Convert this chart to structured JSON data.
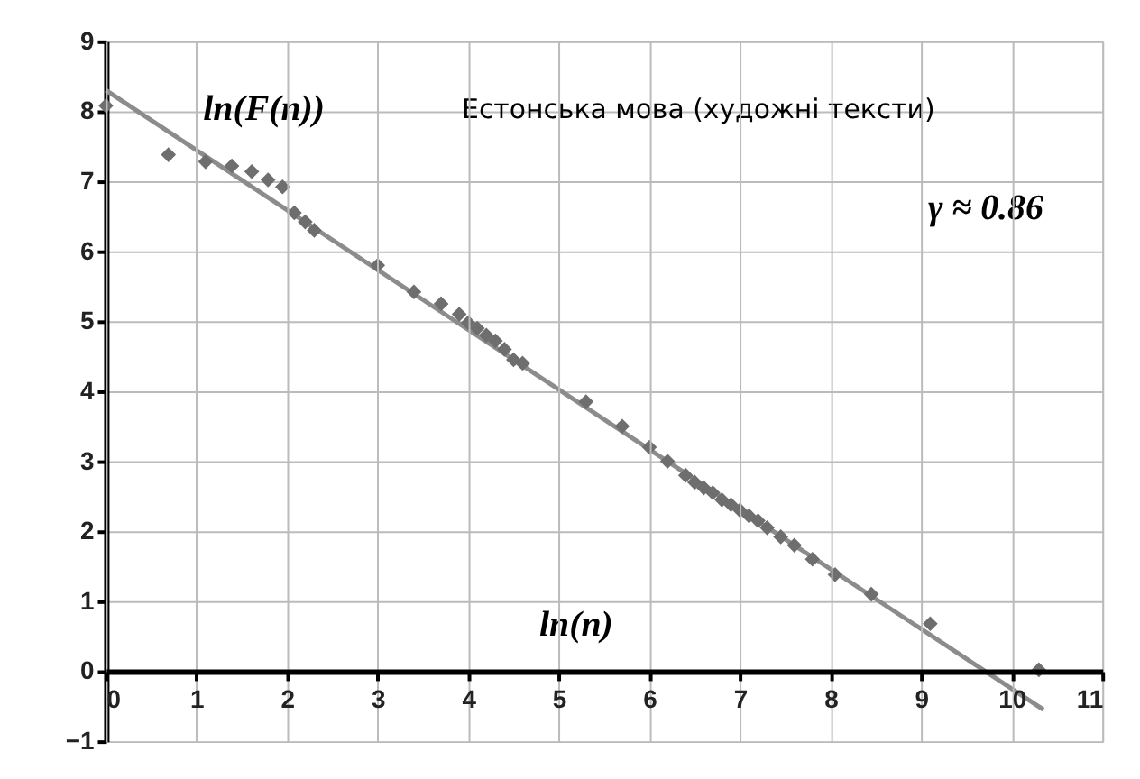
{
  "chart_data": {
    "type": "scatter",
    "title": "Естонська мова (художні тексти)",
    "xlabel": "ln(n)",
    "ylabel": "ln(F(n))",
    "annotations": [
      "γ ≈ 0.86"
    ],
    "xlim": [
      0,
      11
    ],
    "ylim": [
      -1,
      9
    ],
    "xticks": [
      0,
      1,
      2,
      3,
      4,
      5,
      6,
      7,
      8,
      9,
      10,
      11
    ],
    "yticks": [
      -1,
      0,
      1,
      2,
      3,
      4,
      5,
      6,
      7,
      8,
      9
    ],
    "grid": true,
    "series": [
      {
        "type": "scatter",
        "marker": "diamond",
        "color": "#6e6e6e",
        "x": [
          0,
          0.69,
          1.1,
          1.39,
          1.61,
          1.79,
          1.95,
          2.08,
          2.2,
          2.3,
          3.0,
          3.4,
          3.7,
          3.9,
          4.0,
          4.1,
          4.2,
          4.3,
          4.4,
          4.5,
          4.6,
          5.3,
          5.7,
          6.0,
          6.2,
          6.4,
          6.5,
          6.6,
          6.7,
          6.8,
          6.9,
          7.0,
          7.1,
          7.2,
          7.3,
          7.45,
          7.6,
          7.8,
          8.05,
          8.45,
          9.1,
          10.3
        ],
        "values": [
          8.08,
          7.38,
          7.28,
          7.22,
          7.14,
          7.02,
          6.92,
          6.55,
          6.42,
          6.3,
          5.8,
          5.42,
          5.25,
          5.1,
          4.98,
          4.9,
          4.8,
          4.72,
          4.6,
          4.45,
          4.4,
          3.85,
          3.5,
          3.2,
          3.0,
          2.8,
          2.7,
          2.62,
          2.55,
          2.45,
          2.38,
          2.3,
          2.22,
          2.15,
          2.05,
          1.92,
          1.8,
          1.6,
          1.38,
          1.1,
          0.68,
          0.02
        ]
      },
      {
        "type": "line",
        "color": "#8c8c8c",
        "x": [
          0,
          10.35
        ],
        "values": [
          8.3,
          -0.55
        ]
      }
    ]
  }
}
